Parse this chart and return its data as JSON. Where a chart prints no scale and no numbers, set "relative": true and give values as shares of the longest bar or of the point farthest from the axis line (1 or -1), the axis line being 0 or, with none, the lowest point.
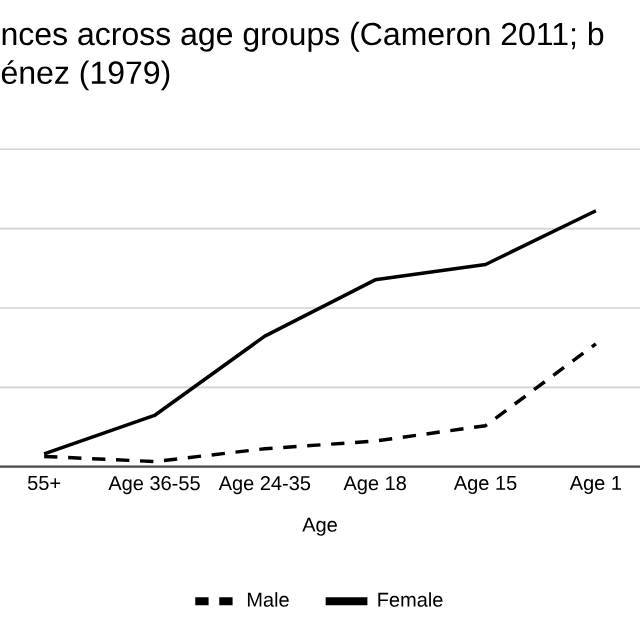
{
  "chart_data": {
    "type": "line",
    "title": "nces across age groups (Cameron 2011; b",
    "subtitle": "énez (1979)",
    "xlabel": "Age",
    "categories": [
      "55+",
      "Age 36-55",
      "Age 24-35",
      "Age 18",
      "Age 15",
      "Age 1"
    ],
    "relative": true,
    "grid": "y",
    "legend": "bottom",
    "series": [
      {
        "name": "Male",
        "color": "#000000",
        "line_style": "dashed",
        "values": [
          0.04,
          0.02,
          0.07,
          0.1,
          0.16,
          0.48
        ]
      },
      {
        "name": "Female",
        "color": "#000000",
        "line_style": "solid",
        "values": [
          0.05,
          0.2,
          0.51,
          0.73,
          0.79,
          1.0
        ]
      }
    ]
  }
}
